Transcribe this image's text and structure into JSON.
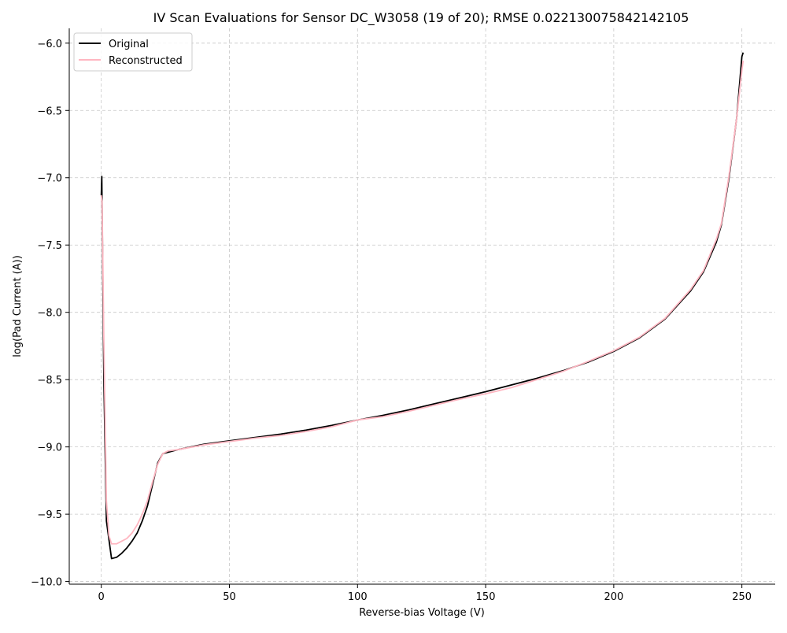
{
  "chart_data": {
    "type": "line",
    "title": "IV Scan Evaluations for Sensor DC_W3058 (19 of 20); RMSE 0.022130075842142105",
    "xlabel": "Reverse-bias Voltage (V)",
    "ylabel": "log(Pad Current (A))",
    "xlim": [
      -12.5,
      263
    ],
    "ylim": [
      -10.02,
      -5.89
    ],
    "xticks": [
      0,
      50,
      100,
      150,
      200,
      250
    ],
    "yticks": [
      -10.0,
      -9.5,
      -9.0,
      -8.5,
      -8.0,
      -7.5,
      -7.0,
      -6.5,
      -6.0
    ],
    "xtick_labels": [
      "0",
      "50",
      "100",
      "150",
      "200",
      "250"
    ],
    "ytick_labels": [
      "−10.0",
      "−9.5",
      "−9.0",
      "−8.5",
      "−8.0",
      "−7.5",
      "−7.0",
      "−6.5",
      "−6.0"
    ],
    "grid": true,
    "legend_position": "top-left",
    "series": [
      {
        "name": "Original",
        "color": "#000000",
        "x": [
          0,
          0.2,
          1,
          2,
          4,
          6,
          8,
          10,
          12,
          14,
          16,
          18,
          20,
          22,
          24,
          26,
          30,
          40,
          50,
          60,
          70,
          80,
          90,
          100,
          110,
          120,
          130,
          140,
          150,
          160,
          170,
          180,
          190,
          200,
          210,
          220,
          230,
          235,
          240,
          242,
          245,
          248,
          250,
          250.5
        ],
        "y": [
          -7.13,
          -6.99,
          -8.5,
          -9.55,
          -9.83,
          -9.82,
          -9.79,
          -9.75,
          -9.7,
          -9.64,
          -9.55,
          -9.44,
          -9.28,
          -9.12,
          -9.05,
          -9.04,
          -9.02,
          -8.98,
          -8.955,
          -8.93,
          -8.905,
          -8.875,
          -8.84,
          -8.8,
          -8.765,
          -8.725,
          -8.68,
          -8.635,
          -8.59,
          -8.54,
          -8.49,
          -8.435,
          -8.37,
          -8.29,
          -8.19,
          -8.05,
          -7.84,
          -7.7,
          -7.48,
          -7.35,
          -7.0,
          -6.55,
          -6.1,
          -6.07
        ]
      },
      {
        "name": "Reconstructed",
        "color": "#ffb6c1",
        "x": [
          0,
          0.3,
          1,
          2,
          3,
          4,
          6,
          8,
          10,
          12,
          14,
          16,
          18,
          20,
          22,
          24,
          26,
          30,
          40,
          50,
          60,
          70,
          80,
          90,
          100,
          110,
          120,
          130,
          140,
          150,
          160,
          170,
          180,
          190,
          200,
          210,
          220,
          230,
          235,
          240,
          242,
          245,
          248,
          250,
          250.5
        ],
        "y": [
          -7.13,
          -7.18,
          -8.2,
          -9.4,
          -9.66,
          -9.72,
          -9.72,
          -9.7,
          -9.68,
          -9.64,
          -9.58,
          -9.5,
          -9.4,
          -9.26,
          -9.13,
          -9.05,
          -9.03,
          -9.02,
          -8.985,
          -8.96,
          -8.935,
          -8.915,
          -8.885,
          -8.85,
          -8.8,
          -8.775,
          -8.735,
          -8.69,
          -8.645,
          -8.605,
          -8.56,
          -8.5,
          -8.44,
          -8.365,
          -8.285,
          -8.185,
          -8.045,
          -7.83,
          -7.69,
          -7.46,
          -7.34,
          -6.98,
          -6.55,
          -6.2,
          -6.13
        ]
      }
    ]
  }
}
